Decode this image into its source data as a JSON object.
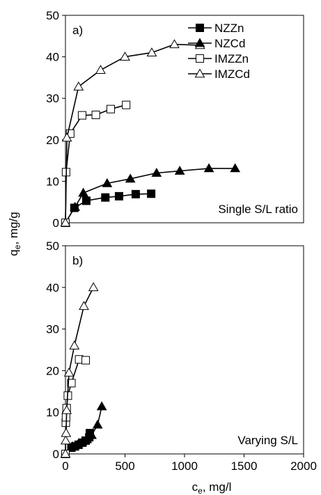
{
  "chart_data": [
    {
      "type": "scatter",
      "panel_tag": "a)",
      "note": "Single S/L ratio",
      "xlabel": "",
      "ylabel": "",
      "xlim": [
        0,
        2000
      ],
      "ylim": [
        0,
        50
      ],
      "x_ticks": [],
      "y_ticks": [
        0,
        10,
        20,
        30,
        40,
        50
      ],
      "grid": false,
      "legend_position": "top-right",
      "series": [
        {
          "name": "NZZn",
          "marker": "square-filled",
          "color": "#000000",
          "x": [
            0,
            75,
            175,
            335,
            450,
            590,
            720
          ],
          "y": [
            0,
            3.6,
            5.3,
            6.1,
            6.4,
            6.9,
            7.0
          ]
        },
        {
          "name": "NZCd",
          "marker": "triangle-filled",
          "color": "#000000",
          "x": [
            0,
            80,
            150,
            350,
            545,
            765,
            960,
            1205,
            1425
          ],
          "y": [
            0,
            3.8,
            7.2,
            9.5,
            10.6,
            12.0,
            12.5,
            13.1,
            13.1
          ]
        },
        {
          "name": "IMZZn",
          "marker": "square-open",
          "color": "#000000",
          "x": [
            0,
            5,
            40,
            140,
            255,
            380,
            510
          ],
          "y": [
            0,
            12.2,
            21.5,
            25.9,
            26.0,
            27.4,
            28.4
          ]
        },
        {
          "name": "IMZCd",
          "marker": "triangle-open",
          "color": "#000000",
          "x": [
            0,
            12,
            110,
            295,
            500,
            725,
            915,
            1130
          ],
          "y": [
            0,
            20.5,
            32.8,
            36.8,
            40.0,
            41.0,
            43.0,
            42.8
          ]
        }
      ]
    },
    {
      "type": "scatter",
      "panel_tag": "b)",
      "note": "Varying S/L",
      "xlabel": "c",
      "xlabel_sub": "e",
      "xlabel_rest": ", mg/l",
      "ylabel": "q",
      "ylabel_sub": "e",
      "ylabel_rest": ", mg/g",
      "xlim": [
        0,
        2000
      ],
      "ylim": [
        0,
        50
      ],
      "x_ticks": [
        0,
        500,
        1000,
        1500,
        2000
      ],
      "y_ticks": [
        0,
        10,
        20,
        30,
        40,
        50
      ],
      "grid": false,
      "series": [
        {
          "name": "NZZn",
          "marker": "square-filled",
          "color": "#000000",
          "x": [
            0,
            50,
            80,
            110,
            140,
            170,
            200,
            205
          ],
          "y": [
            0,
            1.5,
            1.8,
            2.2,
            2.7,
            3.2,
            4.0,
            5.0
          ]
        },
        {
          "name": "NZCd",
          "marker": "triangle-filled",
          "color": "#000000",
          "x": [
            0,
            60,
            100,
            140,
            180,
            220,
            270,
            305
          ],
          "y": [
            0,
            1.8,
            2.2,
            2.8,
            3.5,
            4.5,
            7.0,
            11.4
          ]
        },
        {
          "name": "IMZZn",
          "marker": "square-open",
          "color": "#000000",
          "x": [
            0,
            3,
            5,
            10,
            20,
            50,
            115,
            170
          ],
          "y": [
            0,
            7.5,
            8.8,
            11.0,
            14.0,
            17.0,
            22.7,
            22.5
          ]
        },
        {
          "name": "IMZCd",
          "marker": "triangle-open",
          "color": "#000000",
          "x": [
            0,
            2,
            5,
            10,
            30,
            75,
            155,
            235
          ],
          "y": [
            0,
            3.2,
            5.0,
            10.5,
            19.5,
            26.0,
            35.5,
            40.0
          ]
        }
      ]
    }
  ]
}
